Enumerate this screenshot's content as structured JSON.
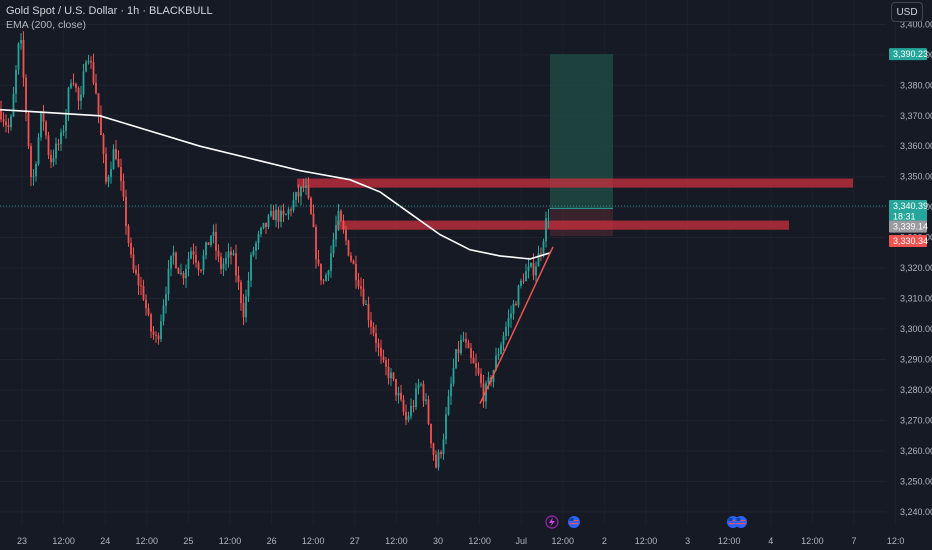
{
  "header": {
    "symbol_line": "Gold Spot / U.S. Dollar · 1h · BLACKBULL",
    "indicator_line": "EMA (200, close)",
    "currency_button": "USD"
  },
  "colors": {
    "background": "#161a25",
    "up": "#26a69a",
    "down": "#ef5350",
    "ema": "#ffffff",
    "zone": "#d32f3f",
    "target_box": "#1f4a43",
    "trendline": "#ef5350"
  },
  "icons": [
    "lightning-event-icon",
    "us-flag-event-icon",
    "us-flag-event-icon",
    "us-flag-event-icon"
  ],
  "chart_data": {
    "type": "candlestick",
    "title": "Gold Spot / U.S. Dollar · 1h · BLACKBULL",
    "ylim": [
      3236,
      3408
    ],
    "y_ticks": [
      "3,240.00",
      "3,250.00",
      "3,260.00",
      "3,270.00",
      "3,280.00",
      "3,290.00",
      "3,300.00",
      "3,310.00",
      "3,320.00",
      "3,330.00",
      "3,340.00",
      "3,350.00",
      "3,360.00",
      "3,370.00",
      "3,380.00",
      "3,390.00",
      "3,400.00"
    ],
    "x_ticks": [
      "23",
      "12:00",
      "24",
      "12:00",
      "25",
      "12:00",
      "26",
      "12:00",
      "27",
      "12:00",
      "30",
      "12:00",
      "Jul",
      "12:00",
      "2",
      "12:00",
      "3",
      "12:00",
      "4",
      "12:00",
      "7",
      "12:0"
    ],
    "price_tags": [
      {
        "label": "3,390.23",
        "value": 3390.23,
        "color": "#26a69a"
      },
      {
        "label": "3,340.39",
        "value": 3340.39,
        "color": "#26a69a"
      },
      {
        "label": "18:31",
        "value": 3337.0,
        "color": "#26a69a"
      },
      {
        "label": "3,339.14",
        "value": 3333.6,
        "color": "#9a9aa0"
      },
      {
        "label": "3,330.34",
        "value": 3328.9,
        "color": "#ef5350"
      }
    ],
    "key_path": [
      [
        0,
        3372
      ],
      [
        10,
        3365
      ],
      [
        20,
        3397
      ],
      [
        32,
        3346
      ],
      [
        42,
        3372
      ],
      [
        50,
        3355
      ],
      [
        62,
        3363
      ],
      [
        72,
        3385
      ],
      [
        80,
        3372
      ],
      [
        87,
        3393
      ],
      [
        96,
        3378
      ],
      [
        106,
        3348
      ],
      [
        115,
        3360
      ],
      [
        124,
        3340
      ],
      [
        132,
        3320
      ],
      [
        143,
        3312
      ],
      [
        150,
        3300
      ],
      [
        157,
        3296
      ],
      [
        165,
        3312
      ],
      [
        173,
        3325
      ],
      [
        182,
        3317
      ],
      [
        192,
        3327
      ],
      [
        200,
        3320
      ],
      [
        212,
        3332
      ],
      [
        220,
        3320
      ],
      [
        232,
        3325
      ],
      [
        244,
        3305
      ],
      [
        252,
        3325
      ],
      [
        262,
        3332
      ],
      [
        274,
        3338
      ],
      [
        284,
        3336
      ],
      [
        294,
        3342
      ],
      [
        305,
        3347
      ],
      [
        312,
        3335
      ],
      [
        318,
        3320
      ],
      [
        324,
        3315
      ],
      [
        331,
        3325
      ],
      [
        338,
        3337
      ],
      [
        345,
        3330
      ],
      [
        352,
        3322
      ],
      [
        360,
        3315
      ],
      [
        368,
        3305
      ],
      [
        375,
        3298
      ],
      [
        382,
        3288
      ],
      [
        390,
        3285
      ],
      [
        398,
        3278
      ],
      [
        406,
        3270
      ],
      [
        414,
        3276
      ],
      [
        420,
        3283
      ],
      [
        426,
        3275
      ],
      [
        432,
        3262
      ],
      [
        436,
        3255
      ],
      [
        442,
        3262
      ],
      [
        448,
        3275
      ],
      [
        455,
        3290
      ],
      [
        463,
        3297
      ],
      [
        470,
        3290
      ],
      [
        478,
        3285
      ],
      [
        484,
        3278
      ],
      [
        492,
        3285
      ],
      [
        502,
        3297
      ],
      [
        514,
        3308
      ],
      [
        524,
        3318
      ],
      [
        534,
        3320
      ],
      [
        540,
        3325
      ],
      [
        546,
        3335
      ],
      [
        550,
        3340
      ]
    ],
    "ema_200": [
      [
        0,
        3372
      ],
      [
        50,
        3371
      ],
      [
        100,
        3370
      ],
      [
        150,
        3365
      ],
      [
        200,
        3360
      ],
      [
        250,
        3356
      ],
      [
        300,
        3352
      ],
      [
        350,
        3349
      ],
      [
        380,
        3345
      ],
      [
        410,
        3338
      ],
      [
        440,
        3331
      ],
      [
        470,
        3326
      ],
      [
        500,
        3324
      ],
      [
        530,
        3323
      ],
      [
        550,
        3325
      ]
    ],
    "zones": [
      {
        "x_start": 297,
        "x_end": 853,
        "y_top": 3349.4,
        "y_bottom": 3346.4
      },
      {
        "x_start": 337,
        "x_end": 789,
        "y_top": 3335.6,
        "y_bottom": 3332.6
      }
    ],
    "position": {
      "x_start": 550,
      "x_end": 613,
      "entry": 3339.6,
      "target": 3390.23,
      "stop": 3330.5
    },
    "trendline": [
      [
        480,
        3275.5
      ],
      [
        553,
        3327
      ]
    ]
  }
}
